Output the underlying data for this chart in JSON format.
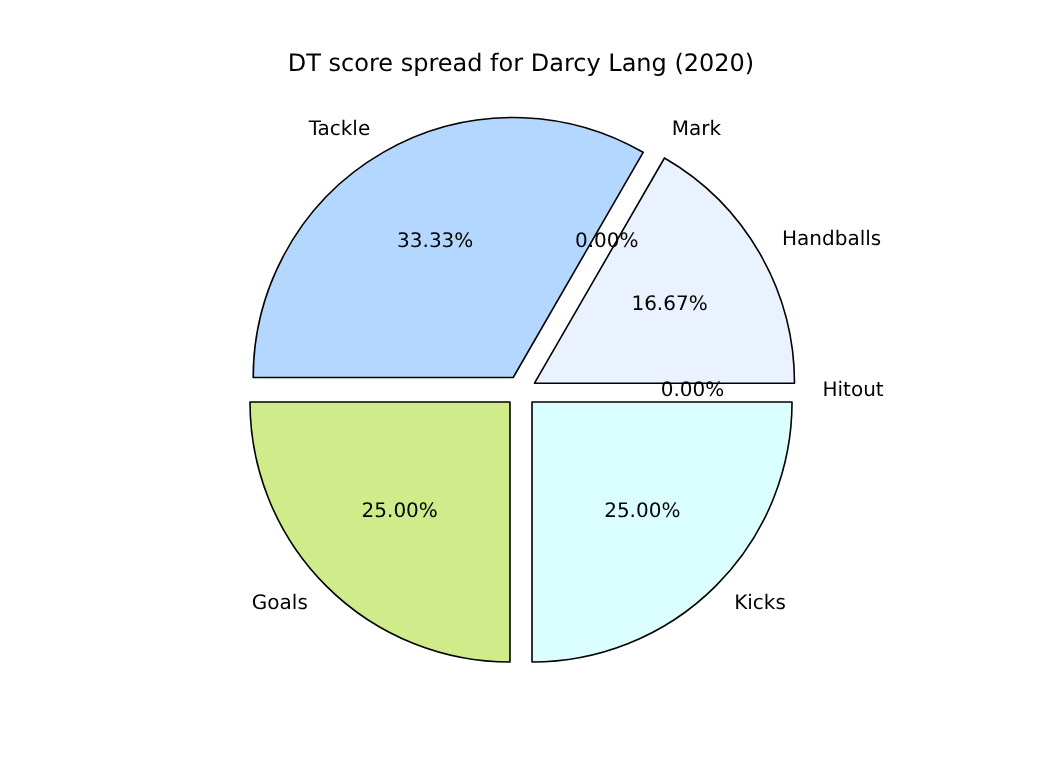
{
  "chart_data": {
    "type": "pie",
    "title": "DT score spread for Darcy Lang (2020)",
    "categories": [
      "Tackle",
      "Mark",
      "Handballs",
      "Hitout",
      "Kicks",
      "Goals"
    ],
    "values": [
      33.33,
      0,
      16.67,
      0,
      25,
      25
    ],
    "value_labels": [
      "33.33%",
      "0.00%",
      "16.67%",
      "0.00%",
      "25.00%",
      "25.00%"
    ],
    "colors": [
      "#b3d7ff",
      "#ffd9b3",
      "#eaf1ff",
      "#ffe0e0",
      "#dafffe",
      "#d0eb8a"
    ]
  }
}
